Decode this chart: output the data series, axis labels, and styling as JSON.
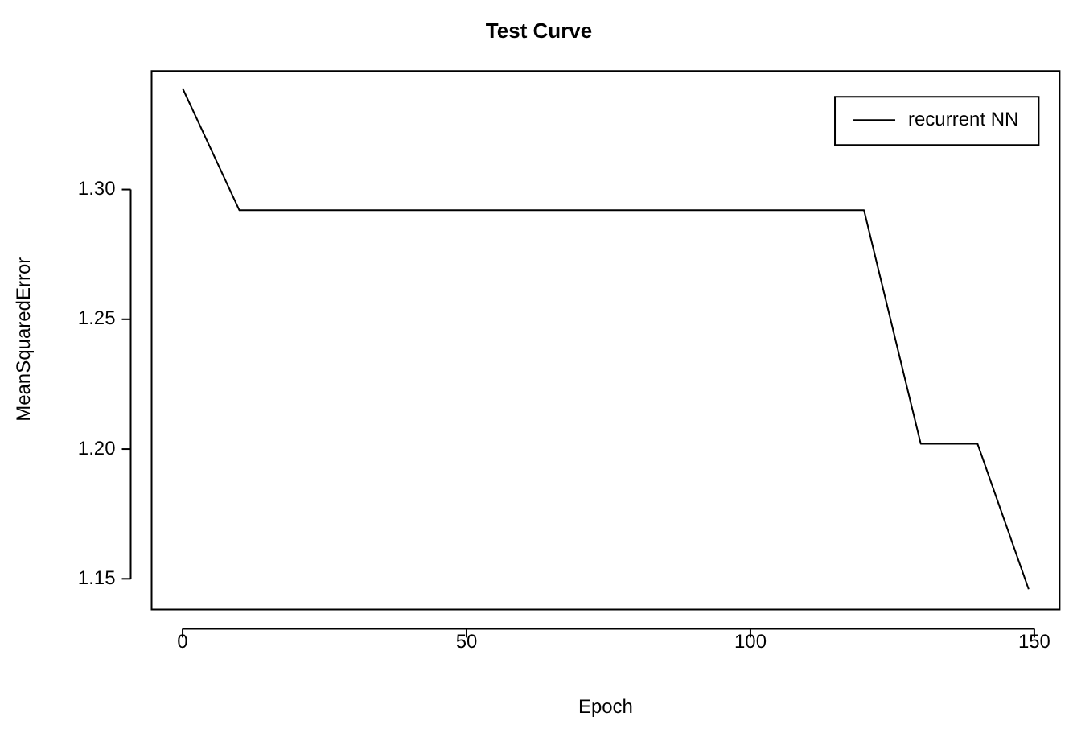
{
  "chart_data": {
    "type": "line",
    "title": "Test Curve",
    "xlabel": "Epoch",
    "ylabel": "MeanSquaredError",
    "x": [
      0,
      10,
      120,
      130,
      140,
      149
    ],
    "series": [
      {
        "name": "recurrent NN",
        "color": "#000000",
        "values": [
          1.339,
          1.292,
          1.292,
          1.202,
          1.202,
          1.146
        ]
      }
    ],
    "xlim": [
      -5.6,
      154.6
    ],
    "xticks": [
      0,
      50,
      100,
      150
    ],
    "ylim": [
      1.1385,
      1.346
    ],
    "yticks": [
      {
        "value": 1.15,
        "label": "1.15"
      },
      {
        "value": 1.2,
        "label": "1.20"
      },
      {
        "value": 1.25,
        "label": "1.25"
      },
      {
        "value": 1.3,
        "label": "1.30"
      }
    ],
    "grid": false,
    "legend": "top right",
    "marker": "none",
    "line_style": "solid"
  }
}
